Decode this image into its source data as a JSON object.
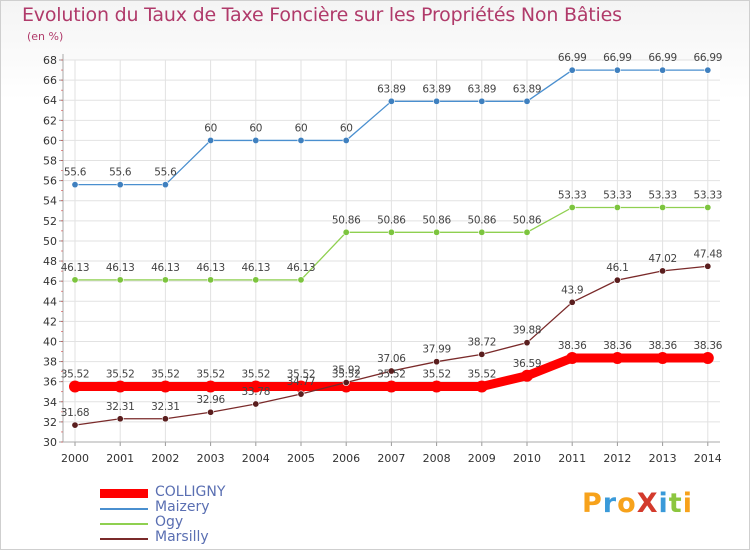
{
  "title": "Evolution du Taux de Taxe Foncière sur les Propriétés Non Bâties",
  "subtitle": "(en %)",
  "logo_text": "ProXiti",
  "chart_data": {
    "type": "line",
    "title": "Evolution du Taux de Taxe Foncière sur les Propriétés Non Bâties",
    "ylabel": "(en %)",
    "xlabel": "",
    "x": [
      2000,
      2001,
      2002,
      2003,
      2004,
      2005,
      2006,
      2007,
      2008,
      2009,
      2010,
      2011,
      2012,
      2013,
      2014
    ],
    "ylim": [
      30,
      68
    ],
    "yticks": [
      30,
      32,
      34,
      36,
      38,
      40,
      42,
      44,
      46,
      48,
      50,
      52,
      54,
      56,
      58,
      60,
      62,
      64,
      66,
      68
    ],
    "grid": true,
    "legend_position": "bottom-left",
    "series": [
      {
        "name": "COLLIGNY",
        "color": "#ff0000",
        "values": [
          35.52,
          35.52,
          35.52,
          35.52,
          35.52,
          35.52,
          35.52,
          35.52,
          35.52,
          35.52,
          36.59,
          38.36,
          38.36,
          38.36,
          38.36
        ],
        "labels": [
          "35.52",
          "35.52",
          "35.52",
          "35.52",
          "35.52",
          "35.52",
          "35.52",
          "35.52",
          "35.52",
          "35.52",
          "36.59",
          "38.36",
          "38.36",
          "38.36",
          "38.36"
        ]
      },
      {
        "name": "Maizery",
        "color": "#4a8fcf",
        "values": [
          55.6,
          55.6,
          55.6,
          60,
          60,
          60,
          60,
          63.89,
          63.89,
          63.89,
          63.89,
          66.99,
          66.99,
          66.99,
          66.99
        ],
        "labels": [
          "55.6",
          "55.6",
          "55.6",
          "60",
          "60",
          "60",
          "60",
          "63.89",
          "63.89",
          "63.89",
          "63.89",
          "66.99",
          "66.99",
          "66.99",
          "66.99"
        ]
      },
      {
        "name": "Ogy",
        "color": "#8fd050",
        "values": [
          46.13,
          46.13,
          46.13,
          46.13,
          46.13,
          46.13,
          50.86,
          50.86,
          50.86,
          50.86,
          50.86,
          53.33,
          53.33,
          53.33,
          53.33
        ],
        "labels": [
          "46.13",
          "46.13",
          "46.13",
          "46.13",
          "46.13",
          "46.13",
          "50.86",
          "50.86",
          "50.86",
          "50.86",
          "50.86",
          "53.33",
          "53.33",
          "53.33",
          "53.33"
        ]
      },
      {
        "name": "Marsilly",
        "color": "#7a2a2a",
        "values": [
          31.68,
          32.31,
          32.31,
          32.96,
          33.78,
          34.77,
          35.92,
          37.06,
          37.99,
          38.72,
          39.88,
          43.9,
          46.1,
          47.02,
          47.48
        ],
        "labels": [
          "31.68",
          "32.31",
          "32.31",
          "32.96",
          "33.78",
          "34.77",
          "35.92",
          "37.06",
          "37.99",
          "38.72",
          "39.88",
          "43.9",
          "46.1",
          "47.02",
          "47.48"
        ]
      }
    ]
  }
}
